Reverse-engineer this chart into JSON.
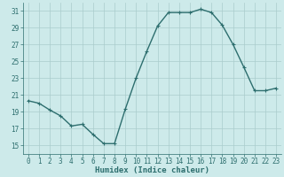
{
  "x": [
    0,
    1,
    2,
    3,
    4,
    5,
    6,
    7,
    8,
    9,
    10,
    11,
    12,
    13,
    14,
    15,
    16,
    17,
    18,
    19,
    20,
    21,
    22,
    23
  ],
  "y": [
    20.3,
    20.0,
    19.2,
    18.5,
    17.3,
    17.5,
    16.3,
    15.2,
    15.2,
    19.3,
    23.0,
    26.2,
    29.2,
    30.8,
    30.8,
    30.8,
    31.2,
    30.8,
    29.3,
    27.0,
    24.3,
    21.5,
    21.5,
    21.8
  ],
  "line_color": "#2d6e6e",
  "marker": "+",
  "marker_size": 3,
  "bg_color": "#cdeaea",
  "grid_color": "#aacccc",
  "xlabel": "Humidex (Indice chaleur)",
  "ylim": [
    14,
    32
  ],
  "yticks": [
    15,
    17,
    19,
    21,
    23,
    25,
    27,
    29,
    31
  ],
  "xticks": [
    0,
    1,
    2,
    3,
    4,
    5,
    6,
    7,
    8,
    9,
    10,
    11,
    12,
    13,
    14,
    15,
    16,
    17,
    18,
    19,
    20,
    21,
    22,
    23
  ],
  "xlim": [
    -0.5,
    23.5
  ],
  "tick_label_size": 5.5,
  "xlabel_size": 6.5,
  "line_width": 1.0
}
